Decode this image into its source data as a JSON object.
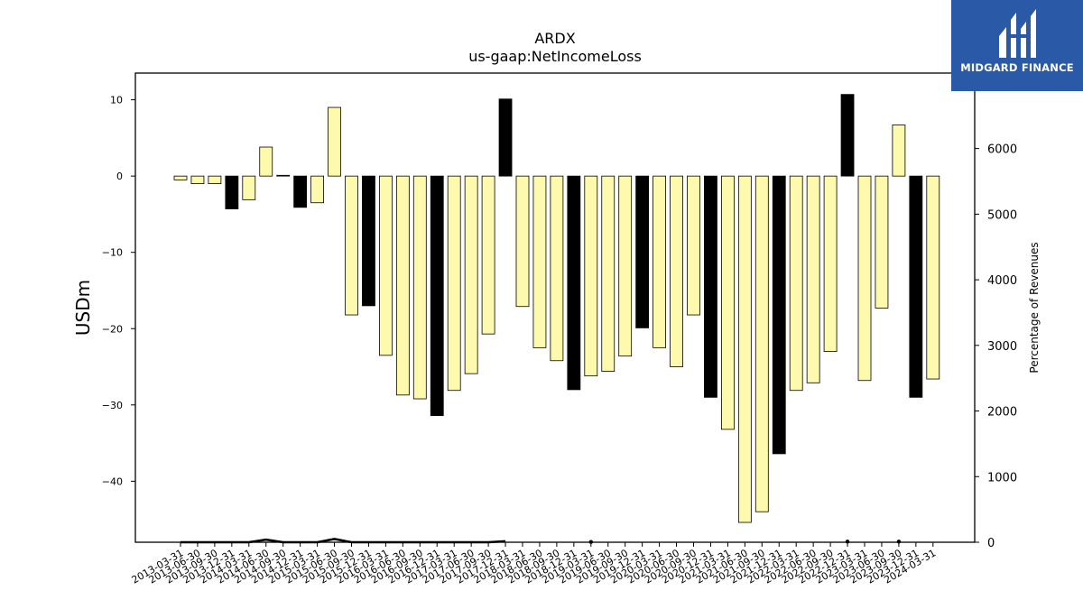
{
  "chart_data": {
    "type": "bar",
    "title": "ARDX",
    "subtitle": "us-gaap:NetIncomeLoss",
    "ylabel": "USDm",
    "y2label": "Percentage of Revenues",
    "ylim": [
      -48.0,
      13.5
    ],
    "y2lim": [
      0,
      7150
    ],
    "yticks": [
      10,
      0,
      -10,
      -20,
      -30,
      -40
    ],
    "y2ticks": [
      0,
      1000,
      2000,
      3000,
      4000,
      5000,
      6000
    ],
    "colors": {
      "normal": "#fdfaad",
      "q4": "#000000",
      "edge": "#000000",
      "line": "#000000"
    },
    "categories": [
      "2013-03-31",
      "2013-06-30",
      "2013-09-30",
      "2013-12-31",
      "2014-03-31",
      "2014-06-30",
      "2014-09-30",
      "2014-12-31",
      "2015-03-31",
      "2015-06-30",
      "2015-09-30",
      "2015-12-31",
      "2016-03-31",
      "2016-06-30",
      "2016-09-30",
      "2016-12-31",
      "2017-03-31",
      "2017-06-30",
      "2017-09-30",
      "2017-12-31",
      "2018-03-31",
      "2018-06-30",
      "2018-09-30",
      "2018-12-31",
      "2019-03-31",
      "2019-06-30",
      "2019-09-30",
      "2019-12-31",
      "2020-03-31",
      "2020-06-30",
      "2020-09-30",
      "2020-12-31",
      "2021-03-31",
      "2021-06-30",
      "2021-09-30",
      "2021-12-31",
      "2022-03-31",
      "2022-06-30",
      "2022-09-30",
      "2022-12-31",
      "2023-03-31",
      "2023-06-30",
      "2023-09-30",
      "2023-12-31",
      "2024-03-31"
    ],
    "values": [
      -0.5,
      -1.0,
      -1.0,
      -4.3,
      -3.1,
      3.8,
      0.1,
      -4.1,
      -3.5,
      9.0,
      -18.2,
      -17.0,
      -23.5,
      -28.7,
      -29.2,
      -31.4,
      -28.1,
      -25.9,
      -20.7,
      10.1,
      -17.1,
      -22.5,
      -24.2,
      -28.0,
      -26.2,
      -25.6,
      -23.6,
      -19.9,
      -22.5,
      -25.0,
      -18.2,
      -29.0,
      -33.2,
      -45.4,
      -44.0,
      -36.4,
      -28.1,
      -27.1,
      -23.0,
      10.7,
      -26.8,
      -17.3,
      6.7,
      -29.0,
      -26.6
    ],
    "q4_flags": [
      false,
      false,
      false,
      true,
      false,
      false,
      false,
      true,
      false,
      false,
      false,
      true,
      false,
      false,
      false,
      true,
      false,
      false,
      false,
      true,
      false,
      false,
      false,
      true,
      false,
      false,
      false,
      true,
      false,
      false,
      false,
      true,
      false,
      false,
      false,
      true,
      false,
      false,
      false,
      true,
      false,
      false,
      false,
      true,
      false
    ],
    "line_series": {
      "name": "",
      "values": [
        0,
        0,
        0,
        0,
        0,
        40,
        0,
        0,
        0,
        50,
        0,
        0,
        0,
        0,
        0,
        0,
        0,
        0,
        0,
        15,
        null,
        null,
        null,
        null,
        5,
        null,
        null,
        null,
        null,
        null,
        null,
        null,
        null,
        null,
        null,
        null,
        null,
        null,
        null,
        10,
        null,
        null,
        10,
        null,
        null
      ]
    }
  },
  "logo": {
    "text": "MIDGARD FINANCE"
  }
}
